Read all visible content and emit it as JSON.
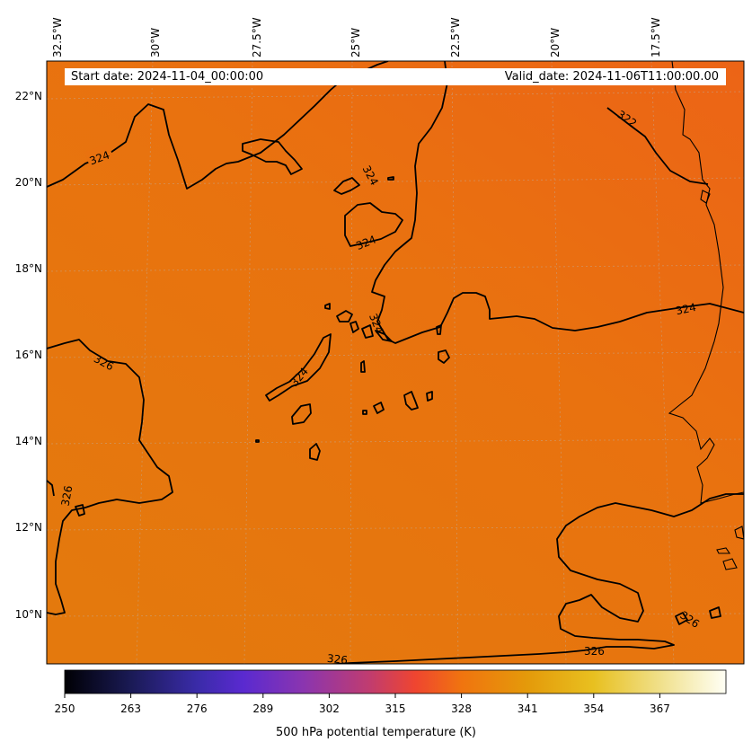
{
  "header": {
    "start_date": "Start date: 2024-11-04_00:00:00",
    "valid_date": "Valid_date: 2024-11-06T11:00:00.00"
  },
  "map": {
    "lon_labels": [
      "32.5°W",
      "30°W",
      "27.5°W",
      "25°W",
      "22.5°W",
      "20°W",
      "17.5°W"
    ],
    "lat_labels": [
      "22°N",
      "20°N",
      "18°N",
      "16°N",
      "14°N",
      "12°N",
      "10°N"
    ],
    "field_colors": {
      "north_east": "#ec6416",
      "center": "#e9720f",
      "south": "#e4790d"
    },
    "contour_labels": [
      "324",
      "324",
      "324",
      "324",
      "324",
      "322",
      "324",
      "326",
      "326",
      "326",
      "326",
      "326"
    ]
  },
  "colorbar": {
    "ticks": [
      "250",
      "263",
      "276",
      "289",
      "302",
      "315",
      "328",
      "341",
      "354",
      "367"
    ],
    "label": "500 hPa potential temperature (K)",
    "colors": [
      "#000004",
      "#1a1a55",
      "#3a2ba8",
      "#5a2ad0",
      "#8a35b0",
      "#c03c70",
      "#ef4530",
      "#f0740f",
      "#e49a0a",
      "#e8c020",
      "#f0e08a",
      "#fffff5"
    ]
  }
}
